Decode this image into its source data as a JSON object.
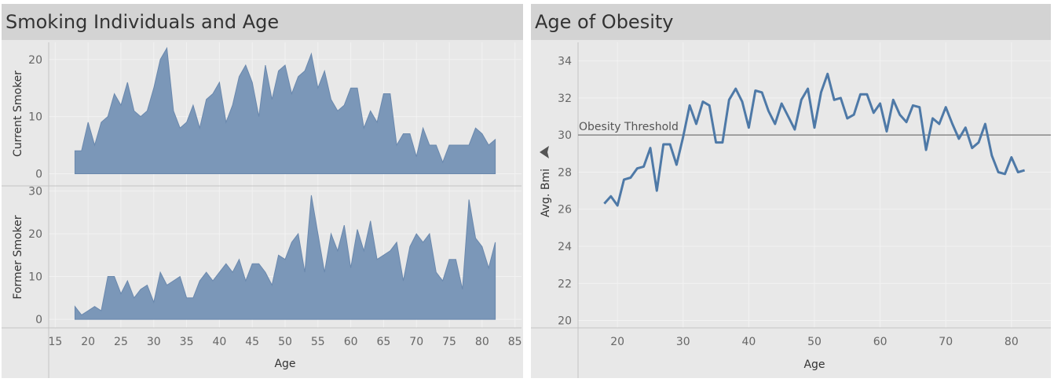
{
  "colors": {
    "area": "#7b97b8",
    "area_stroke": "#6a88ad",
    "line": "#4e79a7",
    "threshold": "#888888",
    "title_bg": "#d3d3d3",
    "plot_bg": "#e8e8e8"
  },
  "icons": {
    "sort": "sort-icon"
  },
  "chart_data": [
    {
      "type": "area",
      "title": "Smoking Individuals and Age",
      "xlabel": "Age",
      "xlim": [
        14,
        86
      ],
      "x_ticks": [
        15,
        20,
        25,
        30,
        35,
        40,
        45,
        50,
        55,
        60,
        65,
        70,
        75,
        80,
        85
      ],
      "x": [
        18,
        19,
        20,
        21,
        22,
        23,
        24,
        25,
        26,
        27,
        28,
        29,
        30,
        31,
        32,
        33,
        34,
        35,
        36,
        37,
        38,
        39,
        40,
        41,
        42,
        43,
        44,
        45,
        46,
        47,
        48,
        49,
        50,
        51,
        52,
        53,
        54,
        55,
        56,
        57,
        58,
        59,
        60,
        61,
        62,
        63,
        64,
        65,
        66,
        67,
        68,
        69,
        70,
        71,
        72,
        73,
        74,
        75,
        76,
        77,
        78,
        79,
        80,
        81,
        82
      ],
      "series": [
        {
          "name": "Current Smoker",
          "ylim": [
            -2,
            23
          ],
          "y_ticks": [
            0,
            10,
            20
          ],
          "values": [
            4,
            4,
            9,
            5,
            9,
            10,
            14,
            12,
            16,
            11,
            10,
            11,
            15,
            20,
            22,
            11,
            8,
            9,
            12,
            8,
            13,
            14,
            16,
            9,
            12,
            17,
            19,
            16,
            10,
            19,
            13,
            18,
            19,
            14,
            17,
            18,
            21,
            15,
            18,
            13,
            11,
            12,
            15,
            15,
            8,
            11,
            9,
            14,
            14,
            5,
            7,
            7,
            3,
            8,
            5,
            5,
            2,
            5,
            5,
            5,
            5,
            8,
            7,
            5,
            6
          ]
        },
        {
          "name": "Former Smoker",
          "ylim": [
            -2,
            31
          ],
          "y_ticks": [
            0,
            10,
            20,
            30
          ],
          "values": [
            3,
            1,
            2,
            3,
            2,
            10,
            10,
            6,
            9,
            5,
            7,
            8,
            4,
            11,
            8,
            9,
            10,
            5,
            5,
            9,
            11,
            9,
            11,
            13,
            11,
            14,
            9,
            13,
            13,
            11,
            8,
            15,
            14,
            18,
            20,
            11,
            29,
            20,
            11,
            20,
            16,
            22,
            12,
            21,
            16,
            23,
            14,
            15,
            16,
            18,
            9,
            17,
            20,
            18,
            20,
            11,
            9,
            14,
            14,
            7,
            28,
            19,
            17,
            12,
            18
          ]
        }
      ]
    },
    {
      "type": "line",
      "title": "Age of Obesity",
      "xlabel": "Age",
      "ylabel": "Avg. Bmi",
      "xlim": [
        14,
        86
      ],
      "ylim": [
        19.6,
        35
      ],
      "x_ticks": [
        20,
        30,
        40,
        50,
        60,
        70,
        80
      ],
      "y_ticks": [
        20,
        22,
        24,
        26,
        28,
        30,
        32,
        34
      ],
      "reference_line": {
        "label": "Obesity Threshold",
        "value": 30
      },
      "x": [
        18,
        19,
        20,
        21,
        22,
        23,
        24,
        25,
        26,
        27,
        28,
        29,
        30,
        31,
        32,
        33,
        34,
        35,
        36,
        37,
        38,
        39,
        40,
        41,
        42,
        43,
        44,
        45,
        46,
        47,
        48,
        49,
        50,
        51,
        52,
        53,
        54,
        55,
        56,
        57,
        58,
        59,
        60,
        61,
        62,
        63,
        64,
        65,
        66,
        67,
        68,
        69,
        70,
        71,
        72,
        73,
        74,
        75,
        76,
        77,
        78,
        79,
        80,
        81,
        82
      ],
      "values": [
        26.3,
        26.7,
        26.2,
        27.6,
        27.7,
        28.2,
        28.3,
        29.3,
        27.0,
        29.5,
        29.5,
        28.4,
        29.9,
        31.6,
        30.6,
        31.8,
        31.6,
        29.6,
        29.6,
        31.9,
        32.5,
        31.8,
        30.4,
        32.4,
        32.3,
        31.3,
        30.6,
        31.7,
        31.0,
        30.3,
        31.9,
        32.5,
        30.4,
        32.3,
        33.3,
        31.9,
        32.0,
        30.9,
        31.1,
        32.2,
        32.2,
        31.2,
        31.7,
        30.2,
        31.9,
        31.1,
        30.7,
        31.6,
        31.5,
        29.2,
        30.9,
        30.6,
        31.5,
        30.6,
        29.8,
        30.4,
        29.3,
        29.6,
        30.6,
        28.9,
        28.0,
        27.9,
        28.8,
        28.0,
        28.1
      ]
    }
  ]
}
